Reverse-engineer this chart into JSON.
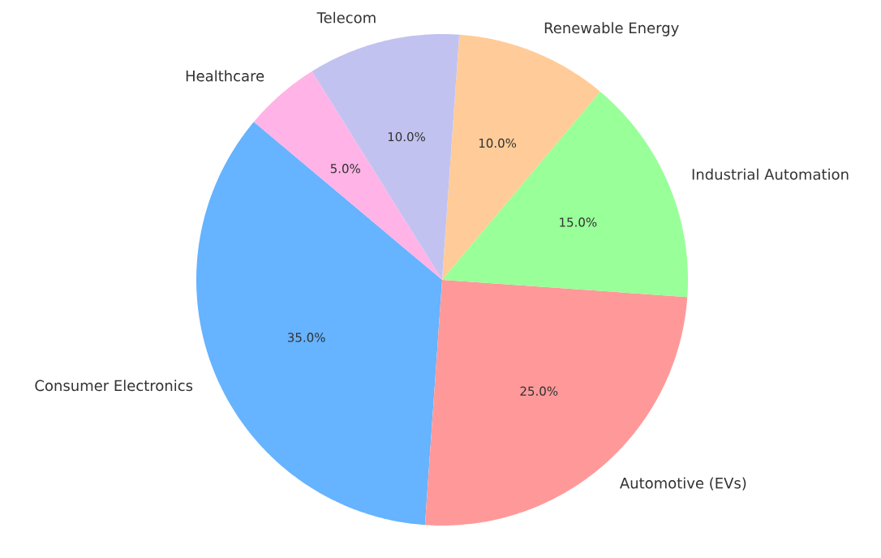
{
  "chart_data": {
    "type": "pie",
    "categories": [
      "Consumer Electronics",
      "Automotive (EVs)",
      "Industrial Automation",
      "Renewable Energy",
      "Telecom",
      "Healthcare"
    ],
    "values": [
      35,
      25,
      15,
      10,
      10,
      5
    ],
    "colors": [
      "#66b3ff",
      "#ff9999",
      "#99ff99",
      "#ffcc99",
      "#c2c2f0",
      "#ffb3e6"
    ],
    "value_labels": [
      "35.0%",
      "25.0%",
      "15.0%",
      "10.0%",
      "10.0%",
      "5.0%"
    ]
  }
}
